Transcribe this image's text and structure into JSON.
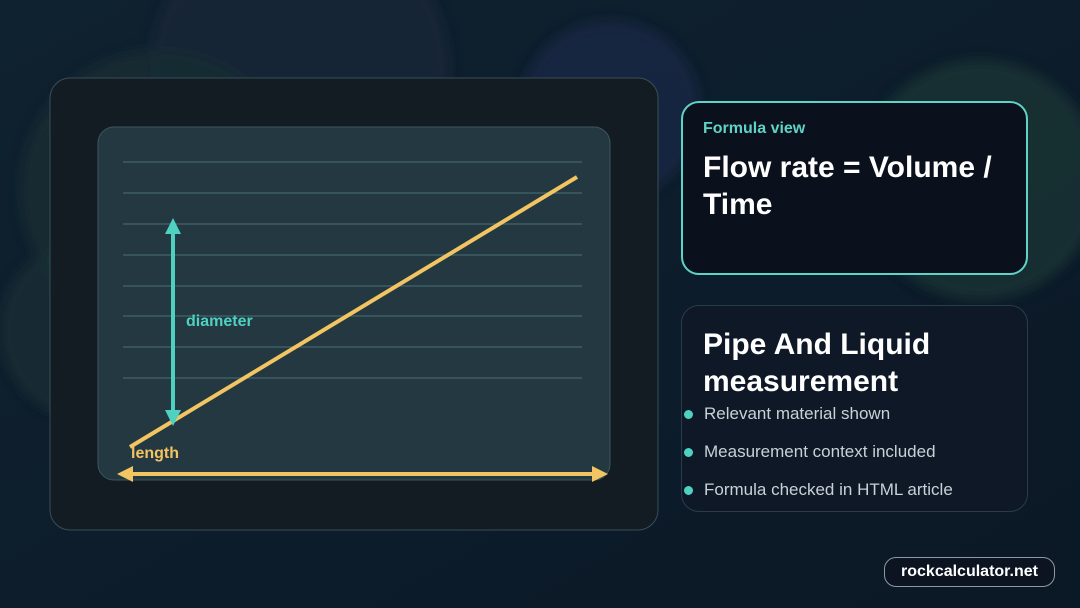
{
  "diagram": {
    "labels": {
      "diameter": "diameter",
      "length": "length"
    }
  },
  "formula_card": {
    "label": "Formula view",
    "formula": "Flow rate = Volume / Time"
  },
  "info_card": {
    "title": "Pipe And Liquid measurement",
    "bullets": [
      "Relevant material shown",
      "Measurement context included",
      "Formula checked in HTML article"
    ]
  },
  "footer": {
    "site": "rockcalculator.net"
  }
}
